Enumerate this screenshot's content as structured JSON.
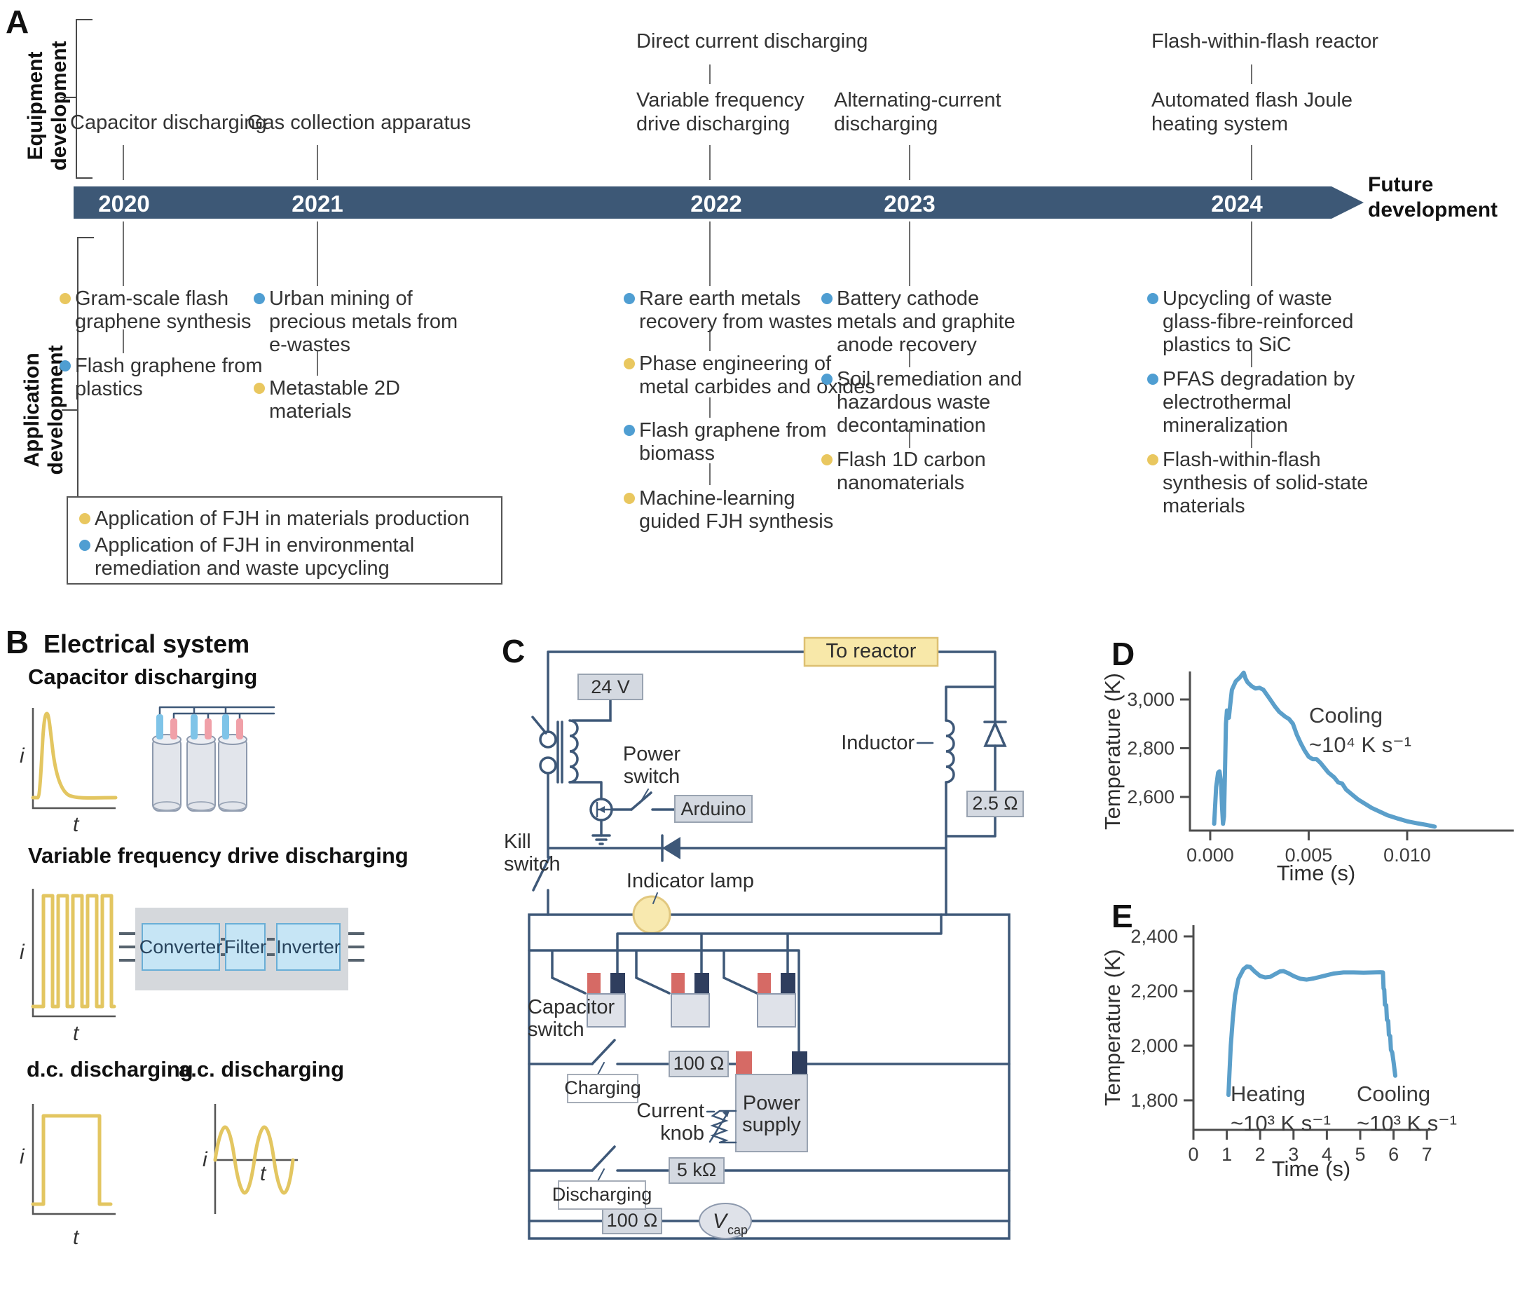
{
  "panelA": {
    "label": "A",
    "equipment_axis": {
      "line1": "Equipment",
      "line2": "development"
    },
    "application_axis": {
      "line1": "Application",
      "line2": "development"
    },
    "timeline": {
      "years": [
        "2020",
        "2021",
        "2022",
        "2023",
        "2024"
      ],
      "future": {
        "line1": "Future",
        "line2": "development"
      },
      "bar_color": "#3d5876"
    },
    "equipment_events": [
      {
        "year": "2020",
        "lines": [
          "Capacitor discharging"
        ]
      },
      {
        "year": "2021",
        "lines": [
          "Gas collection apparatus"
        ]
      },
      {
        "year": "2022",
        "lines": [
          "Direct current discharging"
        ]
      },
      {
        "year": "2022",
        "lines": [
          "Variable frequency",
          "drive discharging"
        ]
      },
      {
        "year": "2023",
        "lines": [
          "Alternating-current",
          "discharging"
        ]
      },
      {
        "year": "2024",
        "lines": [
          "Flash-within-flash reactor"
        ]
      },
      {
        "year": "2024",
        "lines": [
          "Automated flash Joule",
          "heating system"
        ]
      }
    ],
    "application_events": [
      {
        "year": "2020",
        "category": "materials",
        "lines": [
          "Gram-scale flash",
          "graphene synthesis"
        ]
      },
      {
        "year": "2020",
        "category": "environment",
        "lines": [
          "Flash graphene from",
          "plastics"
        ]
      },
      {
        "year": "2021",
        "category": "environment",
        "lines": [
          "Urban mining of",
          "precious metals from",
          "e-wastes"
        ]
      },
      {
        "year": "2021",
        "category": "materials",
        "lines": [
          "Metastable 2D",
          "materials"
        ]
      },
      {
        "year": "2022",
        "category": "environment",
        "lines": [
          "Rare earth metals",
          "recovery from wastes"
        ]
      },
      {
        "year": "2022",
        "category": "materials",
        "lines": [
          "Phase engineering of",
          "metal carbides and oxides"
        ]
      },
      {
        "year": "2022",
        "category": "environment",
        "lines": [
          "Flash graphene from",
          "biomass"
        ]
      },
      {
        "year": "2022",
        "category": "materials",
        "lines": [
          "Machine-learning",
          "guided FJH synthesis"
        ]
      },
      {
        "year": "2023",
        "category": "environment",
        "lines": [
          "Battery cathode",
          "metals and graphite",
          "anode recovery"
        ]
      },
      {
        "year": "2023",
        "category": "environment",
        "lines": [
          "Soil remediation and",
          "hazardous waste",
          "decontamination"
        ]
      },
      {
        "year": "2023",
        "category": "materials",
        "lines": [
          "Flash 1D carbon",
          "nanomaterials"
        ]
      },
      {
        "year": "2024",
        "category": "environment",
        "lines": [
          "Upcycling of waste",
          "glass-fibre-reinforced",
          "plastics to SiC"
        ]
      },
      {
        "year": "2024",
        "category": "environment",
        "lines": [
          "PFAS degradation by",
          "electrothermal",
          "mineralization"
        ]
      },
      {
        "year": "2024",
        "category": "materials",
        "lines": [
          "Flash-within-flash",
          "synthesis of solid-state",
          "materials"
        ]
      }
    ],
    "legend": {
      "items": [
        {
          "category": "materials",
          "lines": [
            "Application of FJH in materials production"
          ]
        },
        {
          "category": "environment",
          "lines": [
            "Application of FJH in environmental",
            "remediation and waste upcycling"
          ]
        }
      ],
      "colors": {
        "materials": "#e9c75f",
        "environment": "#4f9ed2"
      }
    }
  },
  "panelB": {
    "label": "B",
    "title": "Electrical system",
    "axis_current": "i",
    "axis_time": "t",
    "sections": {
      "cap": {
        "title": "Capacitor discharging"
      },
      "vfd": {
        "title": "Variable frequency drive discharging",
        "boxes": [
          "Converter",
          "Filter",
          "Inverter"
        ]
      },
      "dc": {
        "title": "d.c. discharging"
      },
      "ac": {
        "title": "a.c. discharging"
      }
    }
  },
  "panelC": {
    "label": "C",
    "labels": {
      "to_reactor": "To reactor",
      "v24": "24 V",
      "power_switch_1": "Power",
      "power_switch_2": "switch",
      "arduino": "Arduino",
      "inductor": "Inductor",
      "r2_5": "2.5 Ω",
      "kill_1": "Kill",
      "kill_2": "switch",
      "indicator": "Indicator lamp",
      "capswitch_1": "Capacitor",
      "capswitch_2": "switch",
      "charging": "Charging",
      "r100_charging": "100 Ω",
      "psu_1": "Power",
      "psu_2": "supply",
      "knob_1": "Current",
      "knob_2": "knob",
      "discharging": "Discharging",
      "r5k": "5 kΩ",
      "r100_bottom": "100 Ω",
      "vcap_main": "V",
      "vcap_sub": "cap"
    }
  },
  "panelD": {
    "label": "D",
    "annotation": {
      "line1": "Cooling",
      "line2": "~10⁴ K s⁻¹"
    }
  },
  "panelE": {
    "label": "E",
    "heating": {
      "line1": "Heating",
      "line2": "~10³ K s⁻¹"
    },
    "cooling": {
      "line1": "Cooling",
      "line2": "~10³ K s⁻¹"
    }
  },
  "chart_data": [
    {
      "type": "line",
      "panel": "D",
      "xlabel": "Time (s)",
      "ylabel": "Temperature (K)",
      "xlim": [
        -0.00103,
        0.01541
      ],
      "ylim": [
        2462,
        3115
      ],
      "grid": false,
      "legend_position": "none",
      "color": "#5b9fca",
      "annotation": "Cooling ~10⁴ K s⁻¹",
      "xticks": [
        {
          "v": 0,
          "label": "0.000"
        },
        {
          "v": 0.005,
          "label": "0.005"
        },
        {
          "v": 0.01,
          "label": "0.010"
        }
      ],
      "yticks": [
        {
          "v": 2600,
          "label": "2,600"
        },
        {
          "v": 2800,
          "label": "2,800"
        },
        {
          "v": 3000,
          "label": "3,000"
        }
      ],
      "series": [
        {
          "name": "temperature",
          "x": [
            0.0002,
            0.0003,
            0.0004,
            0.00047,
            0.00055,
            0.0006,
            0.00065,
            0.0007,
            0.00075,
            0.0008,
            0.00085,
            0.0009,
            0.00095,
            0.001,
            0.0011,
            0.0013,
            0.0015,
            0.0017,
            0.0018,
            0.0019,
            0.0021,
            0.0023,
            0.0025,
            0.0027,
            0.003,
            0.0033,
            0.0035,
            0.0038,
            0.004,
            0.0042,
            0.0044,
            0.0046,
            0.0048,
            0.005,
            0.0052,
            0.0054,
            0.0056,
            0.0058,
            0.006,
            0.0063,
            0.0065,
            0.0067,
            0.0069,
            0.0072,
            0.0075,
            0.0078,
            0.0082,
            0.0086,
            0.009,
            0.0095,
            0.01,
            0.0105,
            0.011,
            0.0114
          ],
          "y": [
            2490,
            2640,
            2700,
            2705,
            2660,
            2560,
            2490,
            2520,
            2700,
            2900,
            2955,
            2940,
            2925,
            2965,
            3040,
            3075,
            3090,
            3110,
            3085,
            3070,
            3055,
            3045,
            3048,
            3040,
            3005,
            2970,
            2950,
            2930,
            2920,
            2900,
            2855,
            2820,
            2790,
            2765,
            2755,
            2755,
            2740,
            2720,
            2700,
            2680,
            2660,
            2655,
            2630,
            2610,
            2590,
            2575,
            2555,
            2540,
            2525,
            2512,
            2500,
            2492,
            2485,
            2478
          ]
        }
      ]
    },
    {
      "type": "line",
      "panel": "E",
      "xlabel": "Time (s)",
      "ylabel": "Temperature (K)",
      "xlim": [
        0,
        7.08
      ],
      "ylim": [
        1692,
        2441
      ],
      "grid": false,
      "legend_position": "none",
      "color": "#5b9fca",
      "annotation": "Heating ~10³ K s⁻¹ ; Cooling ~10³ K s⁻¹",
      "xticks": [
        {
          "v": 0,
          "label": "0"
        },
        {
          "v": 1,
          "label": "1"
        },
        {
          "v": 2,
          "label": "2"
        },
        {
          "v": 3,
          "label": "3"
        },
        {
          "v": 4,
          "label": "4"
        },
        {
          "v": 5,
          "label": "5"
        },
        {
          "v": 6,
          "label": "6"
        },
        {
          "v": 7,
          "label": "7"
        }
      ],
      "yticks": [
        {
          "v": 1800,
          "label": "1,800"
        },
        {
          "v": 2000,
          "label": "2,000"
        },
        {
          "v": 2200,
          "label": "2,200"
        },
        {
          "v": 2400,
          "label": "2,400"
        }
      ],
      "series": [
        {
          "name": "temperature",
          "x": [
            1.05,
            1.08,
            1.12,
            1.18,
            1.25,
            1.35,
            1.5,
            1.6,
            1.7,
            1.85,
            2.0,
            2.15,
            2.3,
            2.45,
            2.6,
            2.7,
            2.85,
            3.0,
            3.2,
            3.4,
            3.6,
            3.8,
            4.0,
            4.2,
            4.5,
            4.8,
            5.1,
            5.4,
            5.6,
            5.68,
            5.7,
            5.72,
            5.74,
            5.78,
            5.8,
            5.84,
            5.86,
            5.9,
            5.92,
            5.96,
            6.0,
            6.05
          ],
          "y": [
            1820,
            1900,
            2000,
            2100,
            2185,
            2245,
            2280,
            2290,
            2288,
            2270,
            2255,
            2250,
            2252,
            2262,
            2272,
            2273,
            2265,
            2255,
            2245,
            2242,
            2246,
            2252,
            2258,
            2264,
            2268,
            2268,
            2267,
            2268,
            2269,
            2268,
            2210,
            2205,
            2150,
            2148,
            2095,
            2090,
            2040,
            2035,
            1985,
            1975,
            1940,
            1890
          ]
        }
      ]
    }
  ]
}
